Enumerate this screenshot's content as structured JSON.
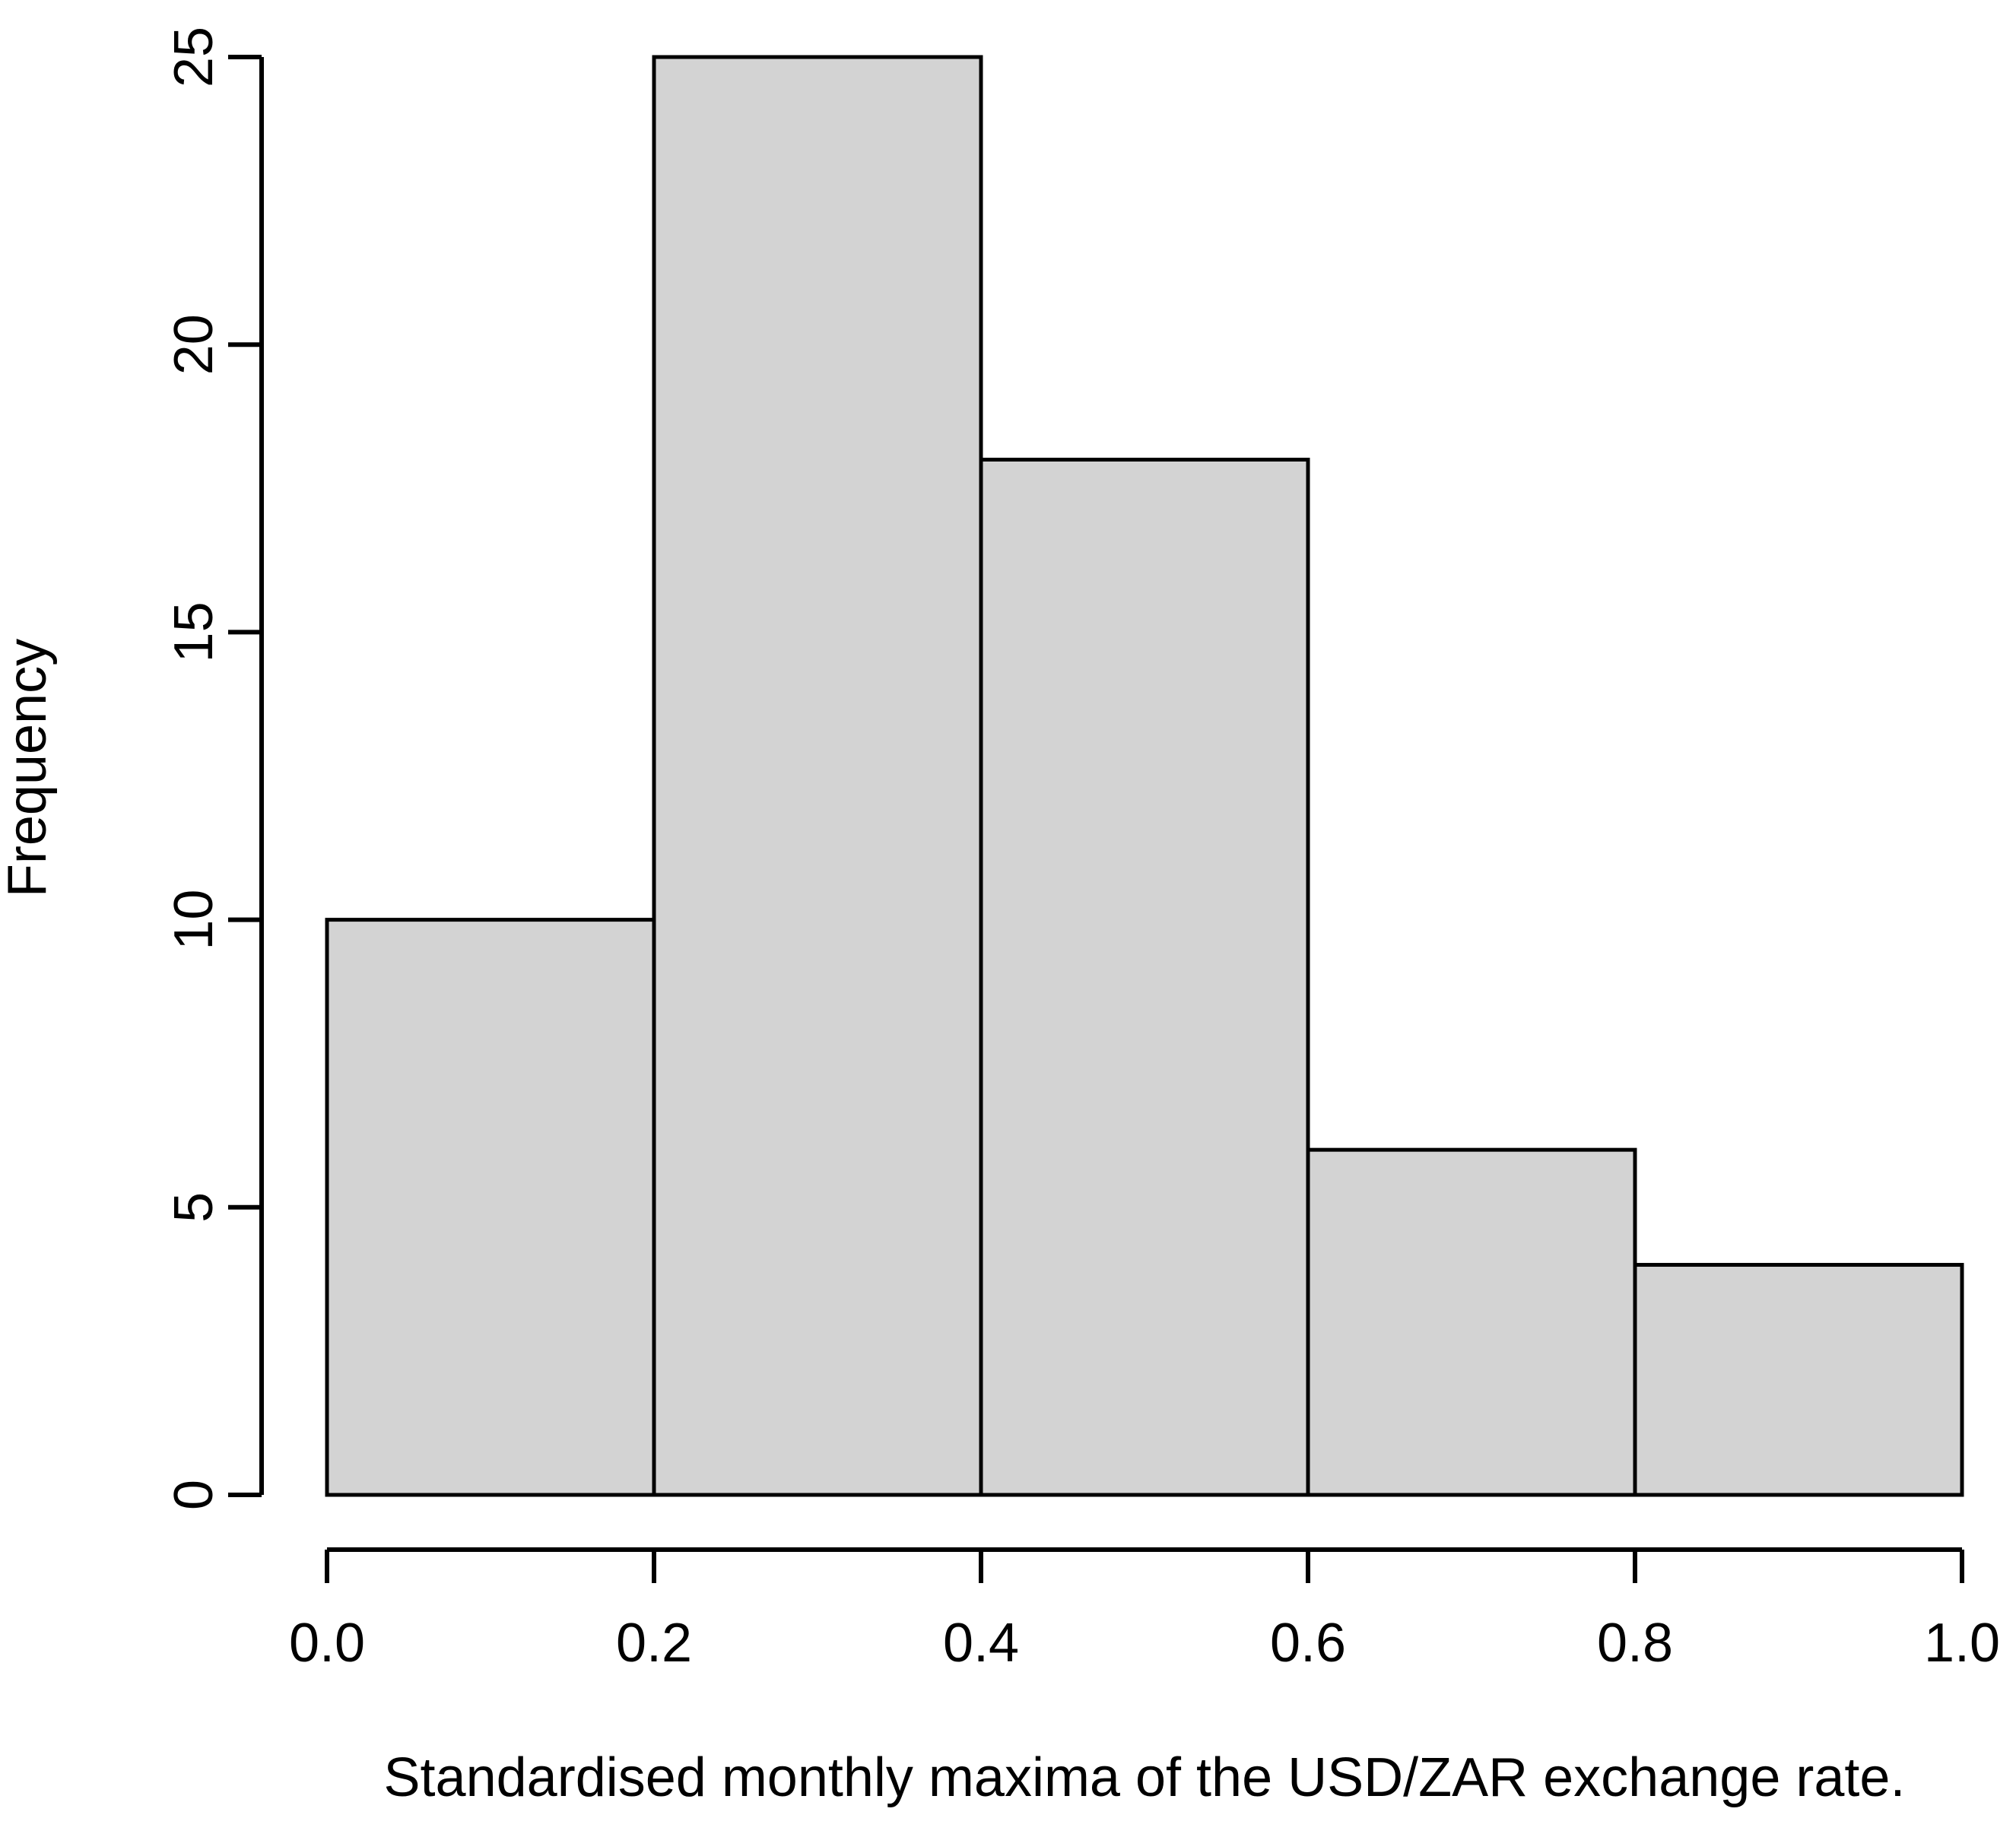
{
  "chart_data": {
    "type": "bar",
    "subtype": "histogram",
    "title": "",
    "xlabel": "Standardised monthly maxima of the USD/ZAR exchange rate.",
    "ylabel": "Frequency",
    "bin_edges": [
      0.0,
      0.2,
      0.4,
      0.6,
      0.8,
      1.0
    ],
    "frequencies": [
      10,
      25,
      18,
      6,
      4
    ],
    "categories": [
      "0.0-0.2",
      "0.2-0.4",
      "0.4-0.6",
      "0.6-0.8",
      "0.8-1.0"
    ],
    "x_tick_labels": [
      "0.0",
      "0.2",
      "0.4",
      "0.6",
      "0.8",
      "1.0"
    ],
    "x_tick_values": [
      0.0,
      0.2,
      0.4,
      0.6,
      0.8,
      1.0
    ],
    "y_tick_labels": [
      "0",
      "5",
      "10",
      "15",
      "20",
      "25"
    ],
    "y_tick_values": [
      0,
      5,
      10,
      15,
      20,
      25
    ],
    "xlim": [
      0.0,
      1.0
    ],
    "ylim": [
      0,
      25
    ],
    "grid": false,
    "legend": null,
    "bar_fill_color": "#D3D3D3",
    "bar_border_color": "#000000",
    "axis_color": "#000000",
    "text_color": "#000000",
    "background_color": "#FFFFFF"
  }
}
